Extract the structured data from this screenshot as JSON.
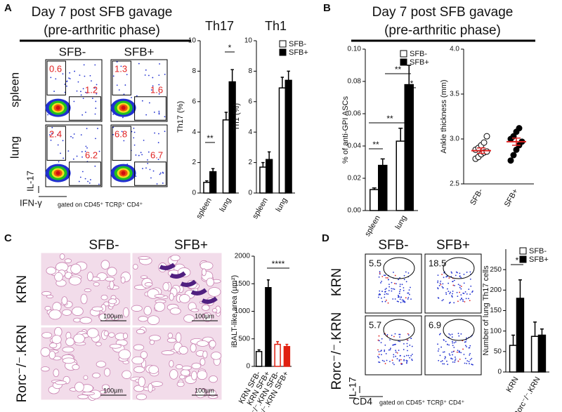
{
  "chart_data": [
    {
      "type": "bar",
      "title": "Th17",
      "y_label": "Th17 (%)",
      "categories": [
        "spleen",
        "lung"
      ],
      "series": [
        {
          "color": "#ffffff",
          "values": [
            0.7,
            4.8
          ],
          "errors": [
            0.1,
            0.5
          ]
        },
        {
          "color": "#000000",
          "values": [
            1.4,
            7.3
          ],
          "errors": [
            0.2,
            0.8
          ]
        }
      ],
      "ylim": [
        0,
        10
      ],
      "yticks": [
        0,
        2,
        4,
        6,
        8,
        10
      ],
      "annotations": [
        "**",
        "*"
      ]
    },
    {
      "type": "bar",
      "title": "Th1",
      "y_label": "Th1 (%)",
      "categories": [
        "spleen",
        "lung"
      ],
      "series": [
        {
          "name": "SFB-",
          "color": "#ffffff",
          "values": [
            1.7,
            6.9
          ],
          "errors": [
            0.3,
            0.7
          ]
        },
        {
          "name": "SFB+",
          "color": "#000000",
          "values": [
            2.2,
            7.4
          ],
          "errors": [
            0.5,
            0.6
          ]
        }
      ],
      "ylim": [
        0,
        10
      ],
      "yticks": [
        0,
        2,
        4,
        6,
        8,
        10
      ],
      "legend": "upper right"
    },
    {
      "type": "bar",
      "y_label": "% of anti-GPI ASCs",
      "categories": [
        "spleen",
        "lung"
      ],
      "series": [
        {
          "name": "SFB-",
          "color": "#ffffff",
          "values": [
            0.013,
            0.043
          ],
          "errors": [
            0.001,
            0.008
          ]
        },
        {
          "name": "SFB+",
          "color": "#000000",
          "values": [
            0.028,
            0.078
          ],
          "errors": [
            0.004,
            0.012
          ]
        }
      ],
      "ylim": [
        0,
        0.1
      ],
      "yticks": [
        {
          "value": 0,
          "label": "0.00"
        },
        {
          "value": 0.02,
          "label": "0.02"
        },
        {
          "value": 0.04,
          "label": "0.04"
        },
        {
          "value": 0.06,
          "label": "0.06"
        },
        {
          "value": 0.08,
          "label": "0.08"
        },
        {
          "value": 0.1,
          "label": "0.10"
        }
      ],
      "legend": "upper right",
      "annotations": [
        "**",
        "**",
        "**",
        "*"
      ]
    },
    {
      "type": "dot",
      "y_label": "Ankle thickness (mm)",
      "categories": [
        "SFB-",
        "SFB+"
      ],
      "groups": [
        {
          "color": "#ffffff",
          "values": [
            2.78,
            2.8,
            2.83,
            2.85,
            2.86,
            2.88,
            2.9,
            2.93,
            2.96,
            3.03
          ],
          "mean": 2.87,
          "error": 0.03
        },
        {
          "color": "#000000",
          "values": [
            2.76,
            2.82,
            2.88,
            2.93,
            2.97,
            3.0,
            3.03,
            3.08,
            3.12
          ],
          "mean": 2.97,
          "error": 0.04
        }
      ],
      "mean_color": "#e02020",
      "ylim": [
        2.5,
        4.0
      ],
      "yticks": [
        2.5,
        {
          "value": 3.0,
          "label": "3.0"
        },
        3.5,
        {
          "value": 4.0,
          "label": "4.0"
        }
      ]
    },
    {
      "type": "bar",
      "y_label": "iBALT-like area (µm²)",
      "categories": [
        "KRN SFB-",
        "KRN SFB+",
        "Rorc⁻/⁻.KRN SFB-",
        "Rorc⁻/⁻.KRN SFB+"
      ],
      "values": [
        270,
        1430,
        400,
        360
      ],
      "errors": [
        30,
        140,
        50,
        40
      ],
      "colors": [
        "#000000",
        "#000000",
        "#e02010",
        "#e02010"
      ],
      "fill_colors": [
        "#ffffff",
        "#000000",
        "#ffffff",
        "#e02010"
      ],
      "ylim": [
        0,
        2000
      ],
      "yticks": [
        0,
        500,
        1000,
        1500,
        2000
      ],
      "annotations": [
        "****"
      ]
    },
    {
      "type": "bar",
      "y_label": "Number of lung Th17 cells",
      "categories": [
        "KRN",
        "Rorc⁻/⁻.KRN"
      ],
      "series": [
        {
          "name": "SFB-",
          "color": "#ffffff",
          "values": [
            65,
            87
          ],
          "errors": [
            25,
            35
          ]
        },
        {
          "name": "SFB+",
          "color": "#000000",
          "values": [
            180,
            90
          ],
          "errors": [
            45,
            15
          ]
        }
      ],
      "ylim": [
        0,
        300
      ],
      "yticks": [
        0,
        50,
        100,
        150,
        200,
        250
      ],
      "legend": "upper right",
      "annotations": [
        "*"
      ]
    }
  ],
  "panels": {
    "A": {
      "label": "A",
      "title": "Day 7 post SFB gavage",
      "subtitle": "(pre-arthritic phase)",
      "columns": [
        "SFB-",
        "SFB+"
      ],
      "rows": [
        "spleen",
        "lung"
      ],
      "gates": [
        [
          "0.6",
          "1.2"
        ],
        [
          "1.3",
          "1.6"
        ],
        [
          "2.4",
          "6.2"
        ],
        [
          "6.8",
          "6.7"
        ]
      ],
      "y_axis": "IL-17",
      "x_axis": "IFN-γ",
      "gating": "gated on CD45⁺ TCRβ⁺ CD4⁺"
    },
    "B": {
      "label": "B",
      "title": "Day 7 post SFB gavage",
      "subtitle": "(pre-arthritic phase)"
    },
    "C": {
      "label": "C",
      "columns": [
        "SFB-",
        "SFB+"
      ],
      "rows": [
        "KRN",
        "Rorc⁻/⁻.KRN"
      ],
      "scale_bars": [
        "100µm",
        "100µm",
        "100µm",
        "100µm"
      ]
    },
    "D": {
      "label": "D",
      "columns": [
        "SFB-",
        "SFB+"
      ],
      "rows": [
        "KRN",
        "Rorc⁻/⁻.KRN"
      ],
      "gates": [
        "5.5",
        "18.5",
        "5.7",
        "6.9"
      ],
      "y_axis": "IL-17",
      "x_axis": "CD4",
      "gating": "gated on CD45⁺ TCRβ⁺ CD4⁺"
    }
  }
}
